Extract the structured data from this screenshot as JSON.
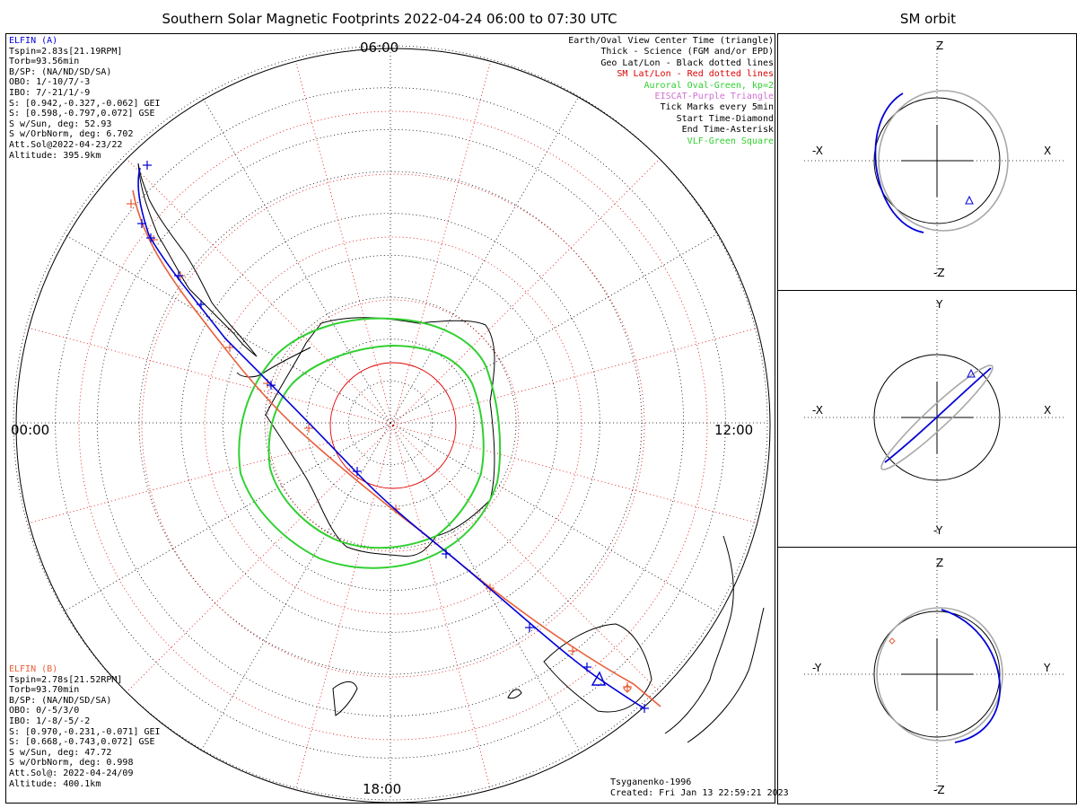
{
  "title": "Southern Solar Magnetic Footprints 2022-04-24 06:00 to 07:30 UTC",
  "orbit_title": "SM orbit",
  "colors": {
    "elfin_a": "#0000d8",
    "elfin_b": "#e8603c",
    "sm_grid": "#e00000",
    "geo_grid": "#000000",
    "auroral_oval": "#30d030",
    "eiscat": "#d070d0",
    "orbit_gray": "#a8a8a8"
  },
  "elfin_a": {
    "lines": [
      "ELFIN (A)",
      "Tspin=2.83s[21.19RPM]",
      "Torb=93.56min",
      "B/SP: (NA/ND/SD/SA)",
      "OBO: 1/-10/7/-3",
      "IBO: 7/-21/1/-9",
      "S: [0.942,-0.327,-0.062] GEI",
      "S: [0.598,-0.797,0.072] GSE",
      "S w/Sun, deg: 52.93",
      "S w/OrbNorm, deg: 6.702",
      "Att.Sol@2022-04-23/22",
      "Altitude: 395.9km"
    ]
  },
  "elfin_b": {
    "lines": [
      "ELFIN (B)",
      "Tspin=2.78s[21.52RPM]",
      "Torb=93.70min",
      "B/SP: (NA/ND/SD/SA)",
      "OBO: 0/-5/3/0",
      "IBO: 1/-8/-5/-2",
      "S: [0.970,-0.231,-0.071] GEI",
      "S: [0.668,-0.743,0.072] GSE",
      "S w/Sun, deg: 47.72",
      "S w/OrbNorm, deg: 0.998",
      "Att.Sol@: 2022-04-24/09",
      "Altitude: 400.1km"
    ]
  },
  "legend": [
    {
      "text": "Earth/Oval View Center Time (triangle)",
      "color": "#000000"
    },
    {
      "text": "Thick - Science (FGM and/or EPD)",
      "color": "#000000"
    },
    {
      "text": "Geo Lat/Lon - Black dotted lines",
      "color": "#000000"
    },
    {
      "text": "SM Lat/Lon - Red dotted lines",
      "color": "#e00000"
    },
    {
      "text": "Auroral Oval-Green, kp=2",
      "color": "#30d030"
    },
    {
      "text": "EISCAT-Purple Triangle",
      "color": "#d070d0"
    },
    {
      "text": "Tick Marks every 5min",
      "color": "#000000"
    },
    {
      "text": "Start Time-Diamond",
      "color": "#000000"
    },
    {
      "text": "End Time-Asterisk",
      "color": "#000000"
    },
    {
      "text": "VLF-Green Square",
      "color": "#30d030"
    }
  ],
  "mlt_labels": {
    "top": "06:00",
    "left": "00:00",
    "right": "12:00",
    "bottom": "18:00"
  },
  "credit": [
    "Tsyganenko-1996",
    "Created: Fri Jan 13 22:59:21 2023"
  ],
  "panels": [
    {
      "top": "Z",
      "bottom": "-Z",
      "left": "-X",
      "right": "X"
    },
    {
      "top": "Y",
      "bottom": "-Y",
      "left": "-X",
      "right": "X"
    },
    {
      "top": "Z",
      "bottom": "-Z",
      "left": "-Y",
      "right": "Y"
    }
  ],
  "chart_data": {
    "type": "map",
    "projection": "polar, south pole, magnetic local time",
    "series": [
      {
        "name": "ELFIN (A)",
        "color": "#0000d8",
        "start": "diamond",
        "end": "asterisk",
        "tick_interval": "5min"
      },
      {
        "name": "ELFIN (B)",
        "color": "#e8603c",
        "start": "diamond",
        "end": "asterisk",
        "tick_interval": "5min"
      }
    ],
    "auroral_oval_kp": 2
  }
}
